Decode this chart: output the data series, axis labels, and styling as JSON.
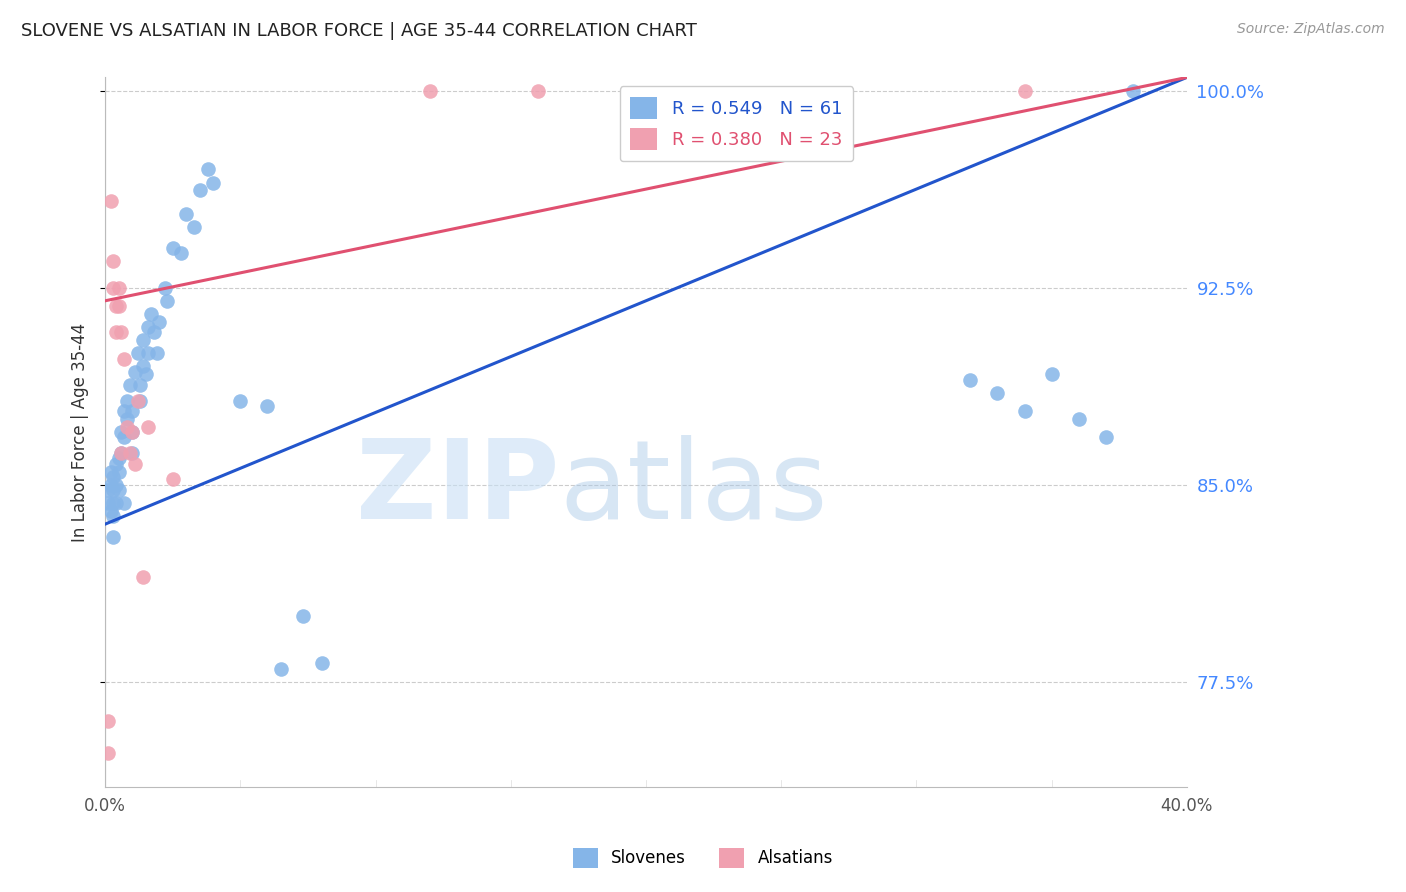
{
  "title": "SLOVENE VS ALSATIAN IN LABOR FORCE | AGE 35-44 CORRELATION CHART",
  "source": "Source: ZipAtlas.com",
  "ylabel": "In Labor Force | Age 35-44",
  "xlim": [
    0.0,
    0.4
  ],
  "ylim": [
    0.735,
    1.005
  ],
  "yticks": [
    0.775,
    0.85,
    0.925,
    1.0
  ],
  "yticklabels": [
    "77.5%",
    "85.0%",
    "92.5%",
    "100.0%"
  ],
  "right_ytick_color": "#4488ff",
  "grid_color": "#cccccc",
  "background_color": "#ffffff",
  "slovene_color": "#85b5e8",
  "alsatian_color": "#f0a0b0",
  "slovene_line_color": "#2255cc",
  "alsatian_line_color": "#e05070",
  "legend_slovene_label": "R = 0.549   N = 61",
  "legend_alsatian_label": "R = 0.380   N = 23",
  "slovene_x": [
    0.001,
    0.001,
    0.002,
    0.002,
    0.002,
    0.003,
    0.003,
    0.003,
    0.003,
    0.003,
    0.004,
    0.004,
    0.004,
    0.005,
    0.005,
    0.005,
    0.006,
    0.006,
    0.007,
    0.007,
    0.007,
    0.008,
    0.008,
    0.009,
    0.01,
    0.01,
    0.01,
    0.011,
    0.012,
    0.013,
    0.013,
    0.014,
    0.014,
    0.015,
    0.016,
    0.016,
    0.017,
    0.018,
    0.019,
    0.02,
    0.022,
    0.023,
    0.025,
    0.028,
    0.03,
    0.033,
    0.035,
    0.038,
    0.04,
    0.05,
    0.06,
    0.065,
    0.073,
    0.08,
    0.32,
    0.33,
    0.34,
    0.35,
    0.36,
    0.37,
    0.38
  ],
  "slovene_y": [
    0.848,
    0.843,
    0.855,
    0.85,
    0.84,
    0.853,
    0.848,
    0.843,
    0.838,
    0.83,
    0.858,
    0.85,
    0.843,
    0.86,
    0.855,
    0.848,
    0.87,
    0.862,
    0.878,
    0.868,
    0.843,
    0.882,
    0.875,
    0.888,
    0.878,
    0.87,
    0.862,
    0.893,
    0.9,
    0.888,
    0.882,
    0.905,
    0.895,
    0.892,
    0.91,
    0.9,
    0.915,
    0.908,
    0.9,
    0.912,
    0.925,
    0.92,
    0.94,
    0.938,
    0.953,
    0.948,
    0.962,
    0.97,
    0.965,
    0.882,
    0.88,
    0.78,
    0.8,
    0.782,
    0.89,
    0.885,
    0.878,
    0.892,
    0.875,
    0.868,
    1.0
  ],
  "alsatian_x": [
    0.001,
    0.001,
    0.002,
    0.003,
    0.003,
    0.004,
    0.004,
    0.005,
    0.005,
    0.006,
    0.006,
    0.007,
    0.008,
    0.009,
    0.01,
    0.011,
    0.012,
    0.014,
    0.016,
    0.025,
    0.12,
    0.16,
    0.34
  ],
  "alsatian_y": [
    0.76,
    0.748,
    0.958,
    0.935,
    0.925,
    0.918,
    0.908,
    0.925,
    0.918,
    0.908,
    0.862,
    0.898,
    0.872,
    0.862,
    0.87,
    0.858,
    0.882,
    0.815,
    0.872,
    0.852,
    1.0,
    1.0,
    1.0
  ],
  "slovene_line": {
    "x0": 0.0,
    "x1": 0.4,
    "y0": 0.835,
    "y1": 1.005
  },
  "alsatian_line": {
    "x0": 0.0,
    "x1": 0.4,
    "y0": 0.92,
    "y1": 1.005
  }
}
